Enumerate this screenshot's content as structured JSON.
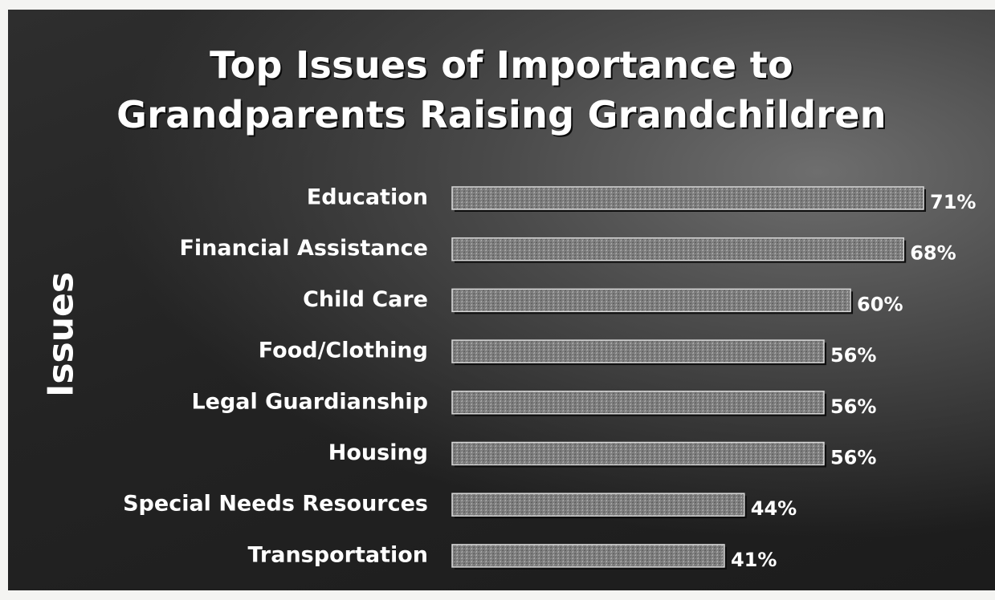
{
  "chart_data": {
    "type": "bar",
    "orientation": "horizontal",
    "title": "Top Issues of Importance to Grandparents Raising Grandchildren",
    "title_lines": [
      "Top Issues of Importance to",
      "Grandparents Raising Grandchildren"
    ],
    "ylabel": "Issues",
    "xlabel": "",
    "categories": [
      "Education",
      "Financial Assistance",
      "Child Care",
      "Food/Clothing",
      "Legal Guardianship",
      "Housing",
      "Special Needs Resources",
      "Transportation"
    ],
    "values": [
      71,
      68,
      60,
      56,
      56,
      56,
      44,
      41
    ],
    "value_labels": [
      "71%",
      "68%",
      "60%",
      "56%",
      "56%",
      "56%",
      "44%",
      "41%"
    ],
    "unit": "%",
    "xlim": [
      0,
      71
    ],
    "grid": false,
    "legend": "none",
    "colors": {
      "background": "#262626",
      "bar_fill": "#8a8a8a",
      "text": "#ffffff"
    }
  }
}
